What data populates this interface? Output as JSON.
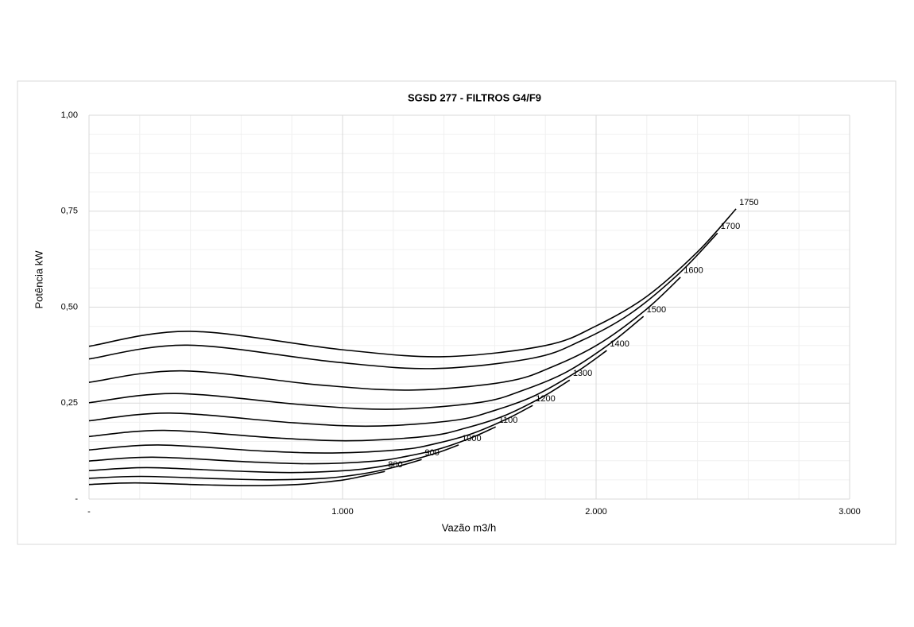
{
  "chart_data": {
    "type": "line",
    "title": "SGSD 277 -  FILTROS G4/F9",
    "x_label": "Vazão m3/h",
    "y_label": "Potência kW",
    "xlim": [
      0,
      3000
    ],
    "ylim": [
      0,
      1
    ],
    "xticks": [
      {
        "value": 0,
        "label": "-"
      },
      {
        "value": 1000,
        "label": "1.000"
      },
      {
        "value": 2000,
        "label": "2.000"
      },
      {
        "value": 3000,
        "label": "3.000"
      }
    ],
    "yticks": [
      {
        "value": 0,
        "label": "-"
      },
      {
        "value": 0.25,
        "label": "0,25"
      },
      {
        "value": 0.5,
        "label": "0,50"
      },
      {
        "value": 0.75,
        "label": "0,75"
      },
      {
        "value": 1,
        "label": "1,00"
      }
    ],
    "xminorticks": [
      200,
      400,
      600,
      800,
      1200,
      1400,
      1600,
      1800,
      2200,
      2400,
      2600,
      2800
    ],
    "yminorticks": [
      0.05,
      0.1,
      0.15,
      0.2,
      0.3,
      0.35,
      0.4,
      0.45,
      0.55,
      0.6,
      0.65,
      0.7,
      0.8,
      0.85,
      0.9,
      0.95
    ],
    "grid": true,
    "series": [
      {
        "name": "1750",
        "color": "#000000",
        "x": [
          0,
          400,
          1000,
          1400,
          1800,
          2000,
          2200,
          2400,
          2552
        ],
        "values": [
          0.398,
          0.437,
          0.389,
          0.371,
          0.4,
          0.451,
          0.528,
          0.644,
          0.756
        ]
      },
      {
        "name": "1700",
        "color": "#000000",
        "x": [
          0,
          389,
          971,
          1360,
          1749,
          1943,
          2137,
          2331,
          2479
        ],
        "values": [
          0.365,
          0.401,
          0.357,
          0.34,
          0.367,
          0.413,
          0.484,
          0.59,
          0.693
        ]
      },
      {
        "name": "1600",
        "color": "#000000",
        "x": [
          0,
          366,
          914,
          1280,
          1646,
          1829,
          2011,
          2194,
          2333
        ],
        "values": [
          0.304,
          0.334,
          0.297,
          0.284,
          0.306,
          0.345,
          0.404,
          0.492,
          0.578
        ]
      },
      {
        "name": "1500",
        "color": "#000000",
        "x": [
          0,
          343,
          857,
          1200,
          1543,
          1714,
          1886,
          2057,
          2187
        ],
        "values": [
          0.251,
          0.275,
          0.245,
          0.234,
          0.252,
          0.284,
          0.332,
          0.406,
          0.476
        ]
      },
      {
        "name": "1400",
        "color": "#000000",
        "x": [
          0,
          320,
          800,
          1120,
          1440,
          1600,
          1760,
          1920,
          2042
        ],
        "values": [
          0.204,
          0.224,
          0.199,
          0.19,
          0.205,
          0.231,
          0.27,
          0.33,
          0.387
        ]
      },
      {
        "name": "1300",
        "color": "#000000",
        "x": [
          0,
          297,
          743,
          1040,
          1337,
          1486,
          1634,
          1783,
          1896
        ],
        "values": [
          0.163,
          0.179,
          0.159,
          0.152,
          0.164,
          0.185,
          0.216,
          0.264,
          0.31
        ]
      },
      {
        "name": "1200",
        "color": "#000000",
        "x": [
          0,
          274,
          686,
          960,
          1234,
          1371,
          1509,
          1646,
          1750
        ],
        "values": [
          0.128,
          0.141,
          0.125,
          0.12,
          0.129,
          0.145,
          0.17,
          0.208,
          0.244
        ]
      },
      {
        "name": "1100",
        "color": "#000000",
        "x": [
          0,
          251,
          629,
          880,
          1131,
          1257,
          1383,
          1509,
          1604
        ],
        "values": [
          0.099,
          0.109,
          0.097,
          0.092,
          0.099,
          0.112,
          0.131,
          0.16,
          0.188
        ]
      },
      {
        "name": "1000",
        "color": "#000000",
        "x": [
          0,
          229,
          571,
          800,
          1029,
          1143,
          1257,
          1371,
          1458
        ],
        "values": [
          0.074,
          0.082,
          0.073,
          0.069,
          0.075,
          0.084,
          0.099,
          0.12,
          0.141
        ]
      },
      {
        "name": "900",
        "color": "#000000",
        "x": [
          0,
          206,
          514,
          720,
          926,
          1029,
          1131,
          1234,
          1312
        ],
        "values": [
          0.054,
          0.059,
          0.053,
          0.05,
          0.054,
          0.061,
          0.072,
          0.088,
          0.103
        ]
      },
      {
        "name": "800",
        "color": "#000000",
        "x": [
          0,
          183,
          457,
          640,
          823,
          914,
          1006,
          1097,
          1167
        ],
        "values": [
          0.038,
          0.042,
          0.037,
          0.035,
          0.038,
          0.043,
          0.05,
          0.062,
          0.072
        ]
      }
    ]
  }
}
